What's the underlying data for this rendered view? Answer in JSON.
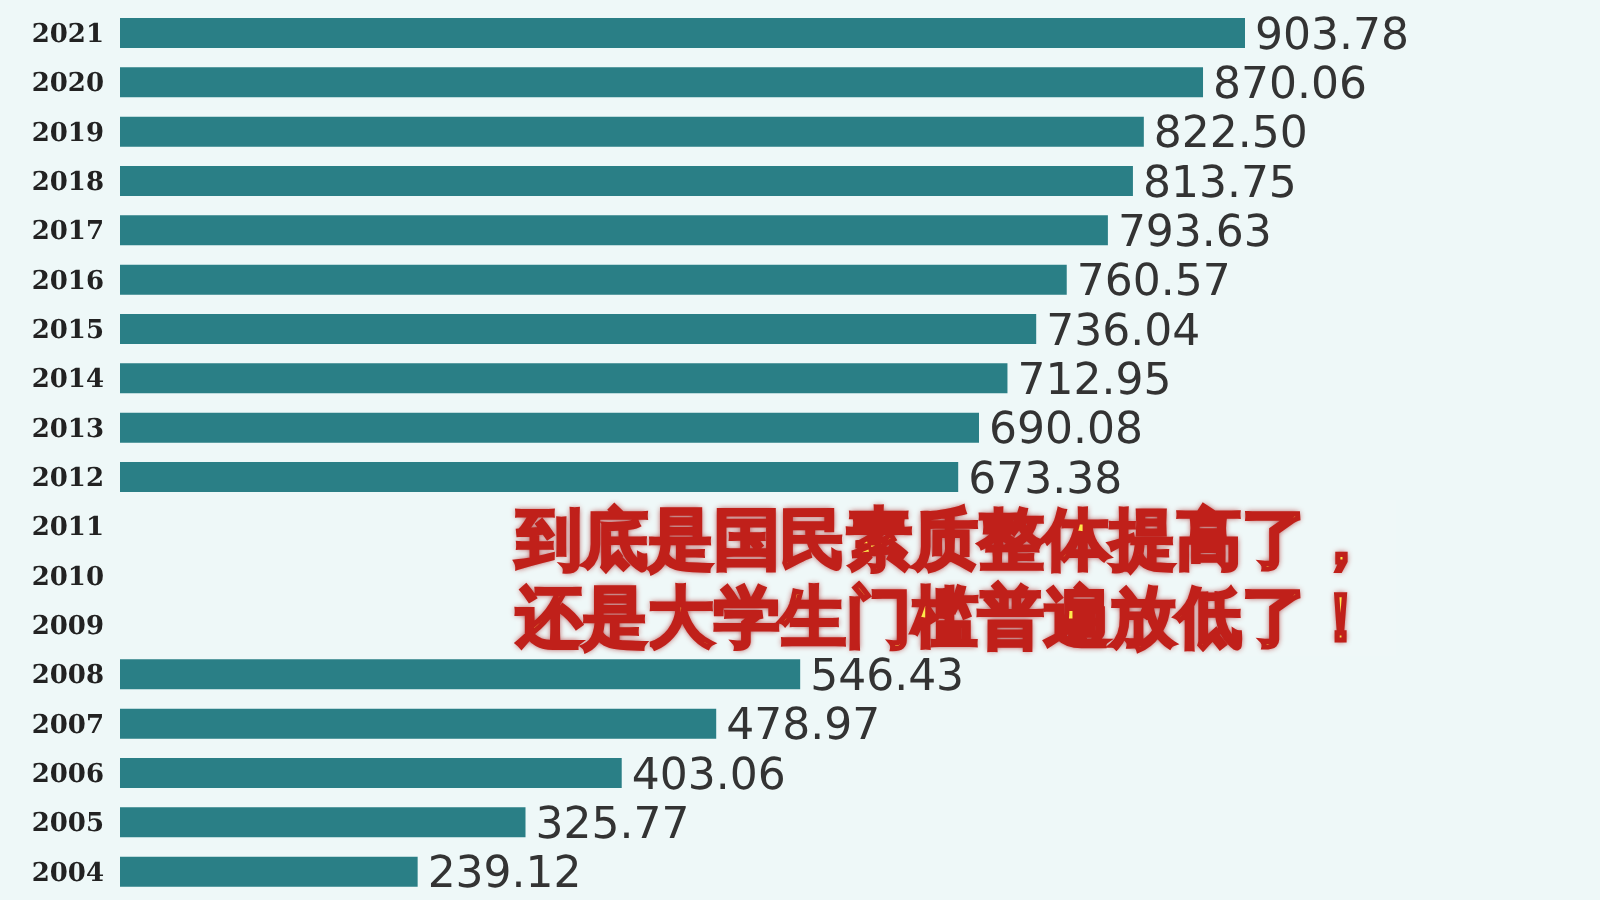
{
  "chart_data": {
    "type": "bar",
    "orientation": "horizontal",
    "categories": [
      "2021",
      "2020",
      "2019",
      "2018",
      "2017",
      "2016",
      "2015",
      "2014",
      "2013",
      "2012",
      "2011",
      "2010",
      "2009",
      "2008",
      "2007",
      "2006",
      "2005",
      "2004"
    ],
    "values": [
      903.78,
      870.06,
      822.5,
      813.75,
      793.63,
      760.57,
      736.04,
      712.95,
      690.08,
      673.38,
      null,
      null,
      null,
      546.43,
      478.97,
      403.06,
      325.77,
      239.12
    ],
    "value_labels": [
      "903.78",
      "870.06",
      "822.50",
      "813.75",
      "793.63",
      "760.57",
      "736.04",
      "712.95",
      "690.08",
      "673.38",
      null,
      null,
      null,
      "546.43",
      "478.97",
      "403.06",
      "325.77",
      "239.12"
    ],
    "color": "#2a7f86",
    "annotations": [
      "到底是国民素质整体提高了，还是大学生门槛普遍放低了！"
    ]
  }
}
